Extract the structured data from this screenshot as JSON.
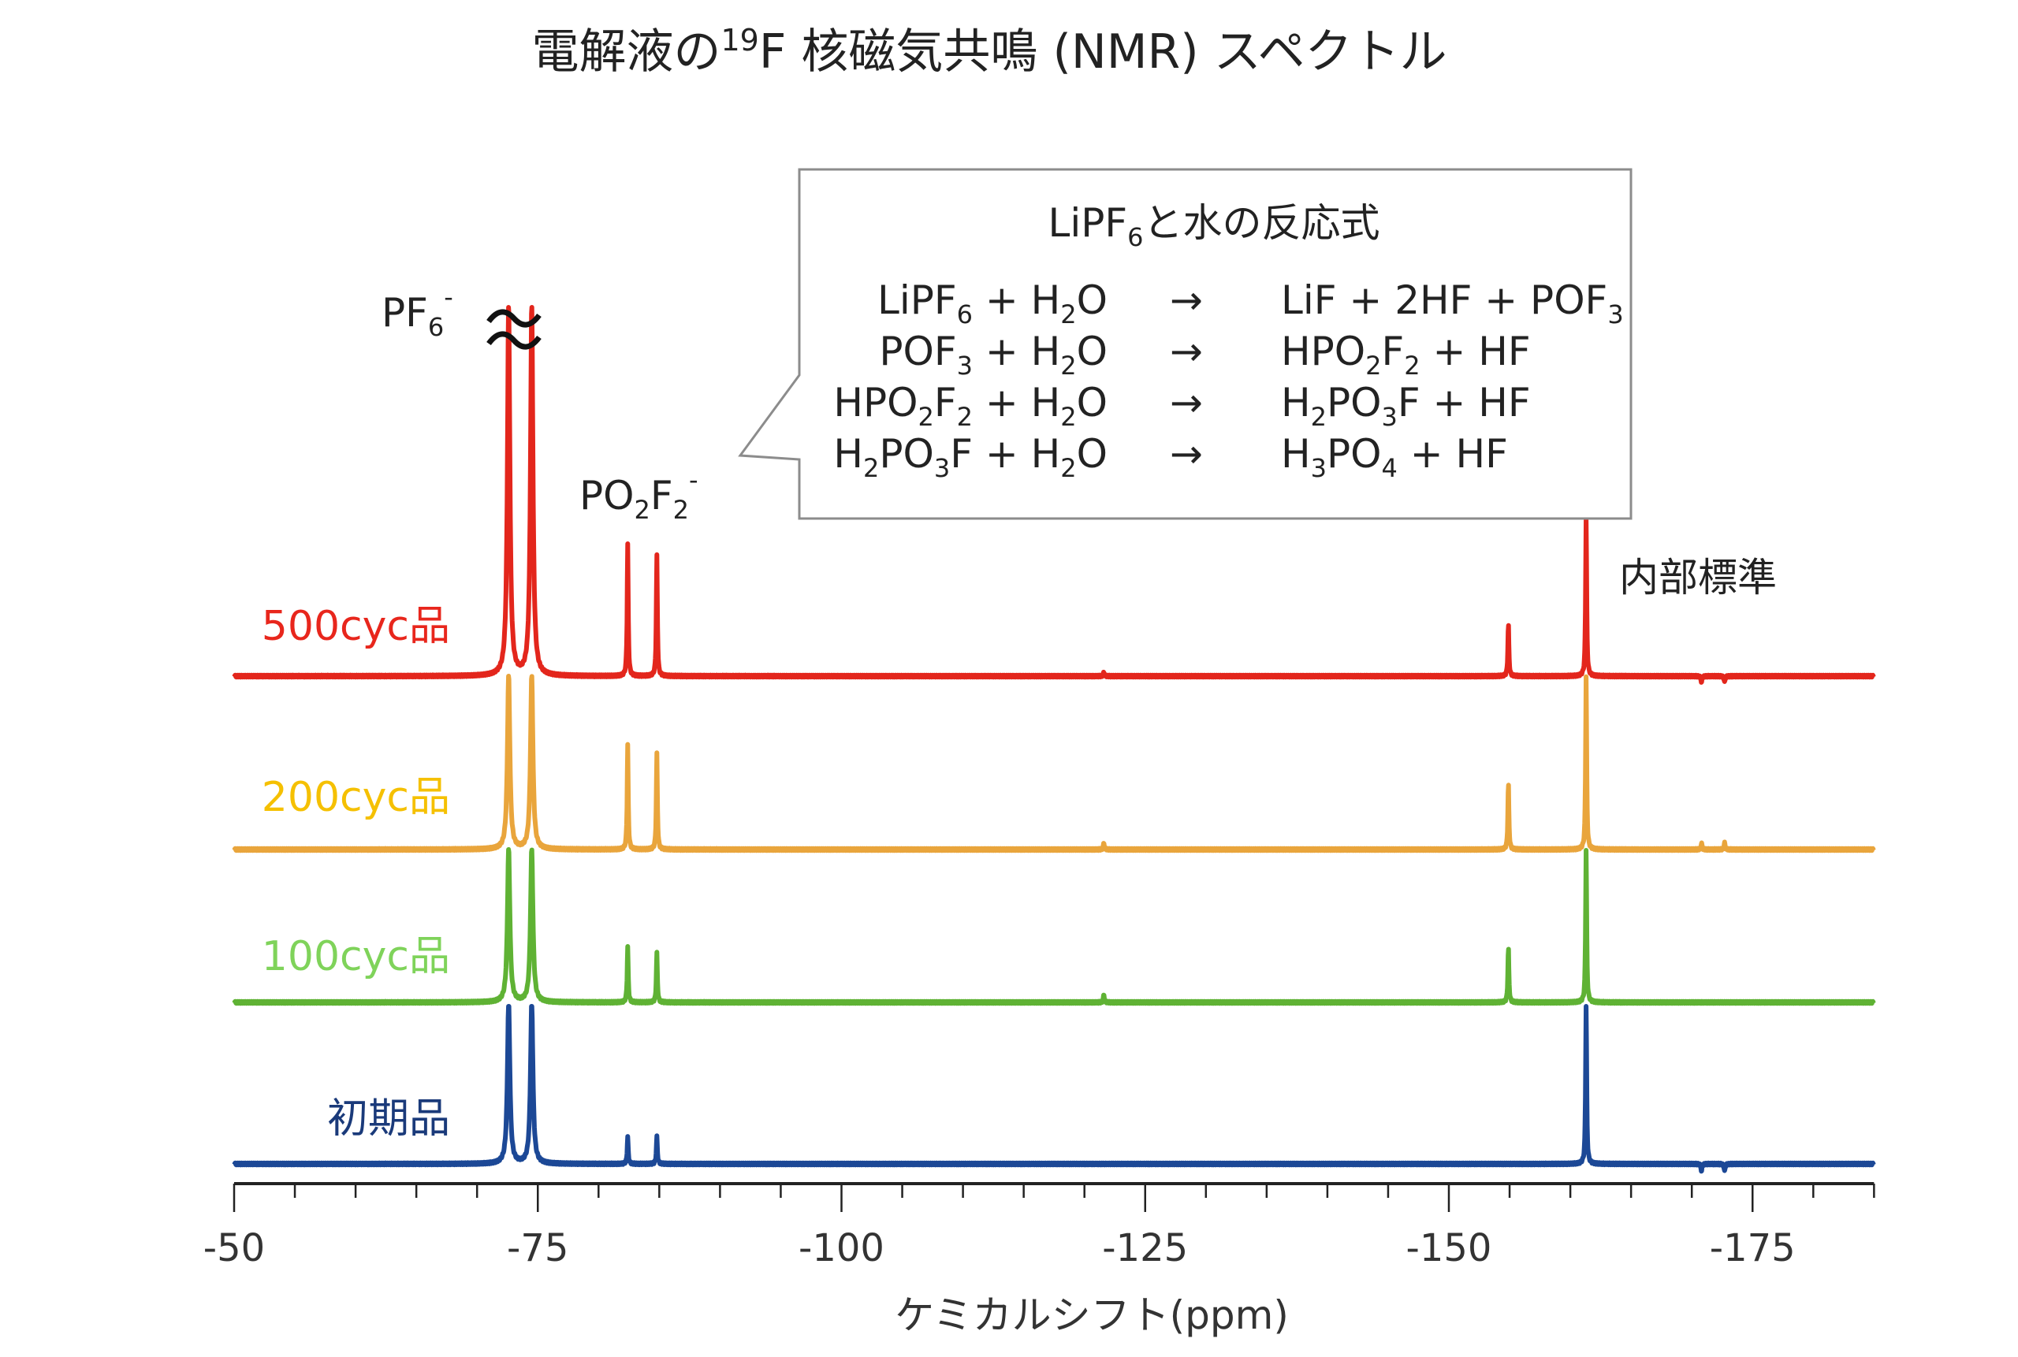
{
  "chart_data": {
    "type": "line",
    "title": "電解液の¹⁹F 核磁気共鳴 (NMR) スペクトル",
    "title_parts": {
      "pre": "電解液の",
      "sup": "19",
      "post": "F 核磁気共鳴 (NMR) スペクトル"
    },
    "xlabel": "ケミカルシフト(ppm)",
    "xlim": [
      -50,
      -185
    ],
    "x_reversed": true,
    "x_ticks": [
      -50,
      -75,
      -100,
      -125,
      -150,
      -175
    ],
    "x_tick_labels": [
      "-50",
      "-75",
      "-100",
      "-125",
      "-150",
      "-175"
    ],
    "x_minor_step": 5,
    "y_axis": "none (stacked spectra, arbitrary intensity)",
    "grid": false,
    "series": [
      {
        "name": "初期品",
        "color": "#1c4896",
        "label_color": "#1a3a7a",
        "peaks": [
          {
            "ppm": -72.6,
            "intensity": 125
          },
          {
            "ppm": -74.5,
            "intensity": 125
          },
          {
            "ppm": -82.4,
            "intensity": 21
          },
          {
            "ppm": -84.8,
            "intensity": 21
          },
          {
            "ppm": -161.3,
            "intensity": 125
          },
          {
            "ppm": -170.8,
            "intensity": -6
          },
          {
            "ppm": -172.7,
            "intensity": -6
          }
        ]
      },
      {
        "name": "100cyc品",
        "color": "#5fb234",
        "label_color": "#7fd35a",
        "peaks": [
          {
            "ppm": -72.6,
            "intensity": 118
          },
          {
            "ppm": -74.5,
            "intensity": 118
          },
          {
            "ppm": -82.4,
            "intensity": 43
          },
          {
            "ppm": -84.8,
            "intensity": 38
          },
          {
            "ppm": -121.6,
            "intensity": 6
          },
          {
            "ppm": -154.9,
            "intensity": 42
          },
          {
            "ppm": -161.3,
            "intensity": 118
          }
        ]
      },
      {
        "name": "200cyc品",
        "color": "#e9a53c",
        "label_color": "#f5c000",
        "peaks": [
          {
            "ppm": -72.6,
            "intensity": 134
          },
          {
            "ppm": -74.5,
            "intensity": 134
          },
          {
            "ppm": -82.4,
            "intensity": 81
          },
          {
            "ppm": -84.8,
            "intensity": 74
          },
          {
            "ppm": -121.6,
            "intensity": 5
          },
          {
            "ppm": -154.9,
            "intensity": 51
          },
          {
            "ppm": -161.3,
            "intensity": 134
          },
          {
            "ppm": -170.8,
            "intensity": 5
          },
          {
            "ppm": -172.7,
            "intensity": 5
          }
        ]
      },
      {
        "name": "500cyc品",
        "color": "#e3261c",
        "label_color": "#e8261c",
        "peaks": [
          {
            "ppm": -72.6,
            "intensity": 286
          },
          {
            "ppm": -74.5,
            "intensity": 286
          },
          {
            "ppm": -82.4,
            "intensity": 102
          },
          {
            "ppm": -84.8,
            "intensity": 93
          },
          {
            "ppm": -121.6,
            "intensity": 3
          },
          {
            "ppm": -154.9,
            "intensity": 40
          },
          {
            "ppm": -161.3,
            "intensity": 123
          },
          {
            "ppm": -170.8,
            "intensity": -5
          },
          {
            "ppm": -172.7,
            "intensity": -5
          }
        ]
      }
    ],
    "annotations": {
      "pf6": {
        "base": "PF",
        "sub": "6",
        "sup": "-"
      },
      "break_mark": "≈",
      "po2f2": {
        "base1": "PO",
        "sub1": "2",
        "base2": "F",
        "sub2": "2",
        "sup": "-"
      },
      "internal_standard": "内部標準"
    },
    "reaction_box": {
      "title": {
        "pre": "LiPF",
        "sub": "6",
        "post": "と水の反応式"
      },
      "arrow": "→",
      "equations": [
        {
          "left": [
            [
              "LiPF",
              ""
            ],
            [
              "6",
              "s"
            ],
            [
              " + H",
              ""
            ],
            [
              "2",
              "s"
            ],
            [
              "O",
              ""
            ]
          ],
          "right": [
            [
              "LiF + 2HF + POF",
              ""
            ],
            [
              "3",
              "s"
            ]
          ]
        },
        {
          "left": [
            [
              "POF",
              ""
            ],
            [
              "3",
              "s"
            ],
            [
              " + H",
              ""
            ],
            [
              "2",
              "s"
            ],
            [
              "O",
              ""
            ]
          ],
          "right": [
            [
              "HPO",
              ""
            ],
            [
              "2",
              "s"
            ],
            [
              "F",
              ""
            ],
            [
              "2",
              "s"
            ],
            [
              " + HF",
              ""
            ]
          ]
        },
        {
          "left": [
            [
              "HPO",
              ""
            ],
            [
              "2",
              "s"
            ],
            [
              "F",
              ""
            ],
            [
              "2",
              "s"
            ],
            [
              " + H",
              ""
            ],
            [
              "2",
              "s"
            ],
            [
              "O",
              ""
            ]
          ],
          "right": [
            [
              "H",
              ""
            ],
            [
              "2",
              "s"
            ],
            [
              "PO",
              ""
            ],
            [
              "3",
              "s"
            ],
            [
              "F + HF",
              ""
            ]
          ]
        },
        {
          "left": [
            [
              "H",
              ""
            ],
            [
              "2",
              "s"
            ],
            [
              "PO",
              ""
            ],
            [
              "3",
              "s"
            ],
            [
              "F + H",
              ""
            ],
            [
              "2",
              "s"
            ],
            [
              "O",
              ""
            ]
          ],
          "right": [
            [
              "H",
              ""
            ],
            [
              "3",
              "s"
            ],
            [
              "PO",
              ""
            ],
            [
              "4",
              "s"
            ],
            [
              " + HF",
              ""
            ]
          ]
        }
      ]
    }
  }
}
